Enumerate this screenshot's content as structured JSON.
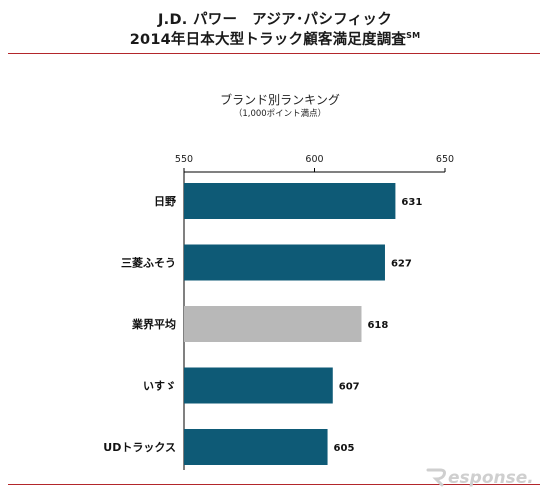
{
  "header": {
    "title_line1": "J.D. パワー　アジア･パシフィック",
    "title_line2": "2014年日本大型トラック顧客満足度調査",
    "title_mark": "SM"
  },
  "chart_data": {
    "type": "bar",
    "orientation": "horizontal",
    "title": "ブランド別ランキング",
    "subtitle": "（1,000ポイント満点）",
    "categories": [
      "日野",
      "三菱ふそう",
      "業界平均",
      "いすゞ",
      "UDトラックス"
    ],
    "values": [
      631,
      627,
      618,
      607,
      605
    ],
    "value_labels": [
      "631",
      "627",
      "618",
      "607",
      "605"
    ],
    "xlim": [
      550,
      650
    ],
    "xticks": [
      550,
      600,
      650
    ],
    "xtick_labels": [
      "550",
      "600",
      "650"
    ],
    "colors": {
      "bar": "#0e5a76",
      "average": "#b8b8b8",
      "axis": "#000000"
    },
    "highlight": [
      "業界平均"
    ],
    "axis_position": "top",
    "grid": false
  },
  "watermark": {
    "text": "Response.",
    "color": "#cfcfcf"
  }
}
